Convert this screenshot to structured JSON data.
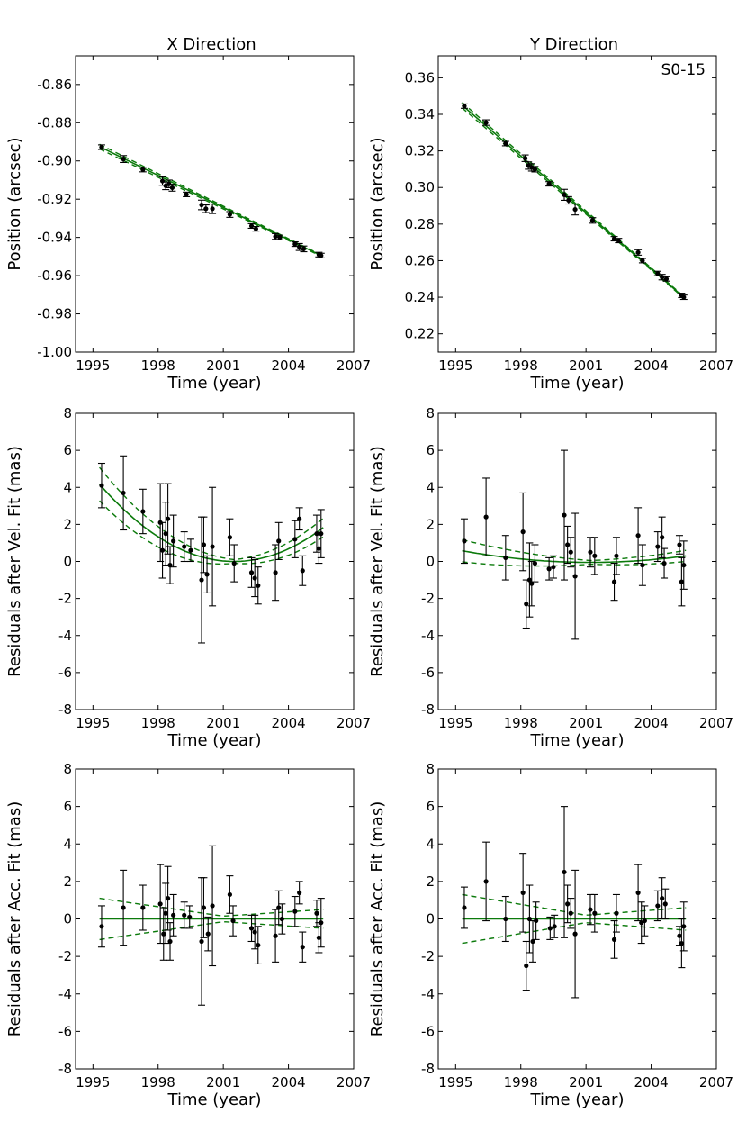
{
  "colors": {
    "fit": "#0b7a0b",
    "points": "#000000",
    "frame": "#000000"
  },
  "titles": {
    "x_direction": "X Direction",
    "y_direction": "Y Direction"
  },
  "annotation": "S0-15",
  "chart_data": [
    {
      "id": "x-position",
      "type": "scatter",
      "title": "X Direction",
      "xlabel": "Time (year)",
      "ylabel": "Position (arcsec)",
      "xlim": [
        1994.2,
        2007
      ],
      "ylim": [
        -1.0,
        -0.845
      ],
      "xticks": [
        1995,
        1998,
        2001,
        2004,
        2007
      ],
      "yticks": [
        -1.0,
        -0.98,
        -0.96,
        -0.94,
        -0.92,
        -0.9,
        -0.88,
        -0.86
      ],
      "ytick_decimals": 2,
      "fit_line": [
        [
          1995.3,
          -0.8925
        ],
        [
          2005.5,
          -0.9495
        ]
      ],
      "fit_band": 0.0012,
      "points": [
        {
          "x": 1995.4,
          "y": -0.8928,
          "err": 0.0012
        },
        {
          "x": 1996.4,
          "y": -0.899,
          "err": 0.0018
        },
        {
          "x": 1997.3,
          "y": -0.9045,
          "err": 0.0012
        },
        {
          "x": 1998.2,
          "y": -0.9105,
          "err": 0.0022
        },
        {
          "x": 1998.35,
          "y": -0.913,
          "err": 0.002
        },
        {
          "x": 1998.5,
          "y": -0.912,
          "err": 0.002
        },
        {
          "x": 1998.65,
          "y": -0.914,
          "err": 0.0018
        },
        {
          "x": 1999.3,
          "y": -0.9175,
          "err": 0.0012
        },
        {
          "x": 2000.0,
          "y": -0.923,
          "err": 0.0025
        },
        {
          "x": 2000.2,
          "y": -0.925,
          "err": 0.002
        },
        {
          "x": 2000.5,
          "y": -0.925,
          "err": 0.0025
        },
        {
          "x": 2001.3,
          "y": -0.928,
          "err": 0.0015
        },
        {
          "x": 2002.3,
          "y": -0.934,
          "err": 0.0012
        },
        {
          "x": 2002.5,
          "y": -0.9355,
          "err": 0.0012
        },
        {
          "x": 2003.4,
          "y": -0.9395,
          "err": 0.0015
        },
        {
          "x": 2003.6,
          "y": -0.94,
          "err": 0.0012
        },
        {
          "x": 2004.3,
          "y": -0.9435,
          "err": 0.0012
        },
        {
          "x": 2004.5,
          "y": -0.945,
          "err": 0.0018
        },
        {
          "x": 2004.7,
          "y": -0.946,
          "err": 0.0015
        },
        {
          "x": 2005.4,
          "y": -0.949,
          "err": 0.0012
        },
        {
          "x": 2005.5,
          "y": -0.9495,
          "err": 0.0012
        }
      ]
    },
    {
      "id": "y-position",
      "type": "scatter",
      "title": "Y Direction",
      "annotation": "S0-15",
      "xlabel": "Time (year)",
      "ylabel": "Position (arcsec)",
      "xlim": [
        1994.2,
        2007
      ],
      "ylim": [
        0.21,
        0.372
      ],
      "xticks": [
        1995,
        1998,
        2001,
        2004,
        2007
      ],
      "yticks": [
        0.22,
        0.24,
        0.26,
        0.28,
        0.3,
        0.32,
        0.34,
        0.36
      ],
      "ytick_decimals": 2,
      "fit_line": [
        [
          1995.3,
          0.345
        ],
        [
          2005.5,
          0.24
        ]
      ],
      "fit_band": 0.0015,
      "points": [
        {
          "x": 1995.4,
          "y": 0.3445,
          "err": 0.0012
        },
        {
          "x": 1996.4,
          "y": 0.3355,
          "err": 0.0015
        },
        {
          "x": 1997.3,
          "y": 0.324,
          "err": 0.0012
        },
        {
          "x": 1998.2,
          "y": 0.316,
          "err": 0.0018
        },
        {
          "x": 1998.35,
          "y": 0.312,
          "err": 0.002
        },
        {
          "x": 1998.5,
          "y": 0.311,
          "err": 0.002
        },
        {
          "x": 1998.65,
          "y": 0.31,
          "err": 0.0015
        },
        {
          "x": 1999.3,
          "y": 0.302,
          "err": 0.0012
        },
        {
          "x": 2000.0,
          "y": 0.296,
          "err": 0.003
        },
        {
          "x": 2000.2,
          "y": 0.293,
          "err": 0.002
        },
        {
          "x": 2000.5,
          "y": 0.288,
          "err": 0.003
        },
        {
          "x": 2001.3,
          "y": 0.282,
          "err": 0.0015
        },
        {
          "x": 2002.3,
          "y": 0.272,
          "err": 0.0012
        },
        {
          "x": 2002.5,
          "y": 0.271,
          "err": 0.0012
        },
        {
          "x": 2003.4,
          "y": 0.2645,
          "err": 0.0015
        },
        {
          "x": 2003.6,
          "y": 0.26,
          "err": 0.0012
        },
        {
          "x": 2004.3,
          "y": 0.253,
          "err": 0.0012
        },
        {
          "x": 2004.5,
          "y": 0.251,
          "err": 0.0015
        },
        {
          "x": 2004.7,
          "y": 0.25,
          "err": 0.0012
        },
        {
          "x": 2005.4,
          "y": 0.241,
          "err": 0.0012
        },
        {
          "x": 2005.5,
          "y": 0.24,
          "err": 0.0012
        }
      ]
    },
    {
      "id": "x-vel-residuals",
      "type": "scatter",
      "xlabel": "Time (year)",
      "ylabel": "Residuals after Vel. Fit (mas)",
      "xlim": [
        1994.2,
        2007
      ],
      "ylim": [
        -8,
        8
      ],
      "xticks": [
        1995,
        1998,
        2001,
        2004,
        2007
      ],
      "yticks": [
        -8,
        -6,
        -4,
        -2,
        0,
        2,
        4,
        6,
        8
      ],
      "ytick_decimals": 0,
      "fit_curve": {
        "a": 0.1087,
        "t0": 2001.5,
        "c": 0.0
      },
      "fit_band_curve": [
        0.9,
        0.1,
        0.5
      ],
      "points": [
        {
          "x": 1995.4,
          "y": 4.1,
          "err": 1.2
        },
        {
          "x": 1996.4,
          "y": 3.7,
          "err": 2.0
        },
        {
          "x": 1997.3,
          "y": 2.7,
          "err": 1.2
        },
        {
          "x": 1998.1,
          "y": 2.1,
          "err": 2.1
        },
        {
          "x": 1998.2,
          "y": 0.6,
          "err": 1.5
        },
        {
          "x": 1998.35,
          "y": 1.5,
          "err": 1.7
        },
        {
          "x": 1998.45,
          "y": 2.3,
          "err": 1.9
        },
        {
          "x": 1998.55,
          "y": -0.2,
          "err": 1.0
        },
        {
          "x": 1998.7,
          "y": 1.1,
          "err": 1.4
        },
        {
          "x": 1999.2,
          "y": 0.8,
          "err": 0.8
        },
        {
          "x": 1999.5,
          "y": 0.6,
          "err": 0.6
        },
        {
          "x": 2000.0,
          "y": -1.0,
          "err": 3.4
        },
        {
          "x": 2000.1,
          "y": 0.9,
          "err": 1.5
        },
        {
          "x": 2000.25,
          "y": -0.7,
          "err": 1.0
        },
        {
          "x": 2000.5,
          "y": 0.8,
          "err": 3.2
        },
        {
          "x": 2001.3,
          "y": 1.3,
          "err": 1.0
        },
        {
          "x": 2001.5,
          "y": -0.1,
          "err": 1.0
        },
        {
          "x": 2002.3,
          "y": -0.6,
          "err": 0.8
        },
        {
          "x": 2002.45,
          "y": -0.9,
          "err": 1.0
        },
        {
          "x": 2002.6,
          "y": -1.3,
          "err": 1.0
        },
        {
          "x": 2003.4,
          "y": -0.6,
          "err": 1.5
        },
        {
          "x": 2003.55,
          "y": 1.1,
          "err": 1.0
        },
        {
          "x": 2004.3,
          "y": 1.2,
          "err": 1.0
        },
        {
          "x": 2004.5,
          "y": 2.3,
          "err": 0.6
        },
        {
          "x": 2004.65,
          "y": -0.5,
          "err": 0.8
        },
        {
          "x": 2005.3,
          "y": 1.5,
          "err": 1.0
        },
        {
          "x": 2005.4,
          "y": 0.7,
          "err": 0.8
        },
        {
          "x": 2005.5,
          "y": 1.5,
          "err": 1.3
        }
      ]
    },
    {
      "id": "y-vel-residuals",
      "type": "scatter",
      "xlabel": "Time (year)",
      "ylabel": "Residuals after Vel. Fit (mas)",
      "xlim": [
        1994.2,
        2007
      ],
      "ylim": [
        -8,
        8
      ],
      "xticks": [
        1995,
        1998,
        2001,
        2004,
        2007
      ],
      "yticks": [
        -8,
        -6,
        -4,
        -2,
        0,
        2,
        4,
        6,
        8
      ],
      "ytick_decimals": 0,
      "fit_curve": {
        "a": 0.018,
        "t0": 2001.2,
        "c": -0.05
      },
      "fit_band_curve": [
        0.6,
        0.1,
        0.3
      ],
      "points": [
        {
          "x": 1995.4,
          "y": 1.1,
          "err": 1.2
        },
        {
          "x": 1996.4,
          "y": 2.4,
          "err": 2.1
        },
        {
          "x": 1997.3,
          "y": 0.2,
          "err": 1.2
        },
        {
          "x": 1998.1,
          "y": 1.6,
          "err": 2.1
        },
        {
          "x": 1998.25,
          "y": -2.3,
          "err": 1.3
        },
        {
          "x": 1998.4,
          "y": -1.0,
          "err": 2.0
        },
        {
          "x": 1998.5,
          "y": -1.2,
          "err": 1.2
        },
        {
          "x": 1998.65,
          "y": -0.1,
          "err": 1.0
        },
        {
          "x": 1999.3,
          "y": -0.4,
          "err": 0.6
        },
        {
          "x": 1999.5,
          "y": -0.3,
          "err": 0.6
        },
        {
          "x": 2000.0,
          "y": 2.5,
          "err": 3.5
        },
        {
          "x": 2000.15,
          "y": 0.9,
          "err": 1.0
        },
        {
          "x": 2000.3,
          "y": 0.5,
          "err": 0.8
        },
        {
          "x": 2000.5,
          "y": -0.8,
          "err": 3.4
        },
        {
          "x": 2001.2,
          "y": 0.5,
          "err": 0.8
        },
        {
          "x": 2001.4,
          "y": 0.3,
          "err": 1.0
        },
        {
          "x": 2002.3,
          "y": -1.1,
          "err": 1.0
        },
        {
          "x": 2002.4,
          "y": 0.3,
          "err": 1.0
        },
        {
          "x": 2003.4,
          "y": 1.4,
          "err": 1.5
        },
        {
          "x": 2003.6,
          "y": -0.2,
          "err": 1.1
        },
        {
          "x": 2004.3,
          "y": 0.8,
          "err": 0.8
        },
        {
          "x": 2004.5,
          "y": 1.3,
          "err": 1.1
        },
        {
          "x": 2004.6,
          "y": -0.1,
          "err": 0.8
        },
        {
          "x": 2005.3,
          "y": 0.9,
          "err": 0.5
        },
        {
          "x": 2005.4,
          "y": -1.1,
          "err": 1.3
        },
        {
          "x": 2005.5,
          "y": -0.2,
          "err": 1.3
        }
      ]
    },
    {
      "id": "x-acc-residuals",
      "type": "scatter",
      "xlabel": "Time (year)",
      "ylabel": "Residuals after Acc. Fit (mas)",
      "xlim": [
        1994.2,
        2007
      ],
      "ylim": [
        -8,
        8
      ],
      "xticks": [
        1995,
        1998,
        2001,
        2004,
        2007
      ],
      "yticks": [
        -8,
        -6,
        -4,
        -2,
        0,
        2,
        4,
        6,
        8
      ],
      "ytick_decimals": 0,
      "fit_curve": {
        "a": 0.0,
        "t0": 2001.0,
        "c": 0.0
      },
      "fit_band_curve": [
        1.1,
        0.15,
        0.5
      ],
      "points": [
        {
          "x": 1995.4,
          "y": -0.4,
          "err": 1.1
        },
        {
          "x": 1996.4,
          "y": 0.6,
          "err": 2.0
        },
        {
          "x": 1997.3,
          "y": 0.6,
          "err": 1.2
        },
        {
          "x": 1998.1,
          "y": 0.8,
          "err": 2.1
        },
        {
          "x": 1998.25,
          "y": -0.8,
          "err": 1.4
        },
        {
          "x": 1998.35,
          "y": 0.3,
          "err": 1.6
        },
        {
          "x": 1998.45,
          "y": 1.1,
          "err": 1.7
        },
        {
          "x": 1998.55,
          "y": -1.2,
          "err": 1.0
        },
        {
          "x": 1998.7,
          "y": 0.2,
          "err": 1.1
        },
        {
          "x": 1999.2,
          "y": 0.2,
          "err": 0.7
        },
        {
          "x": 1999.45,
          "y": 0.1,
          "err": 0.6
        },
        {
          "x": 2000.0,
          "y": -1.2,
          "err": 3.4
        },
        {
          "x": 2000.1,
          "y": 0.6,
          "err": 1.6
        },
        {
          "x": 2000.3,
          "y": -0.8,
          "err": 0.9
        },
        {
          "x": 2000.5,
          "y": 0.7,
          "err": 3.2
        },
        {
          "x": 2001.3,
          "y": 1.3,
          "err": 1.0
        },
        {
          "x": 2001.45,
          "y": -0.1,
          "err": 0.8
        },
        {
          "x": 2002.3,
          "y": -0.5,
          "err": 0.7
        },
        {
          "x": 2002.45,
          "y": -0.7,
          "err": 0.9
        },
        {
          "x": 2002.6,
          "y": -1.4,
          "err": 1.0
        },
        {
          "x": 2003.4,
          "y": -0.9,
          "err": 1.4
        },
        {
          "x": 2003.55,
          "y": 0.6,
          "err": 0.9
        },
        {
          "x": 2003.7,
          "y": 0.0,
          "err": 0.8
        },
        {
          "x": 2004.3,
          "y": 0.4,
          "err": 0.8
        },
        {
          "x": 2004.5,
          "y": 1.4,
          "err": 0.6
        },
        {
          "x": 2004.65,
          "y": -1.5,
          "err": 0.8
        },
        {
          "x": 2005.3,
          "y": 0.3,
          "err": 0.7
        },
        {
          "x": 2005.4,
          "y": -1.0,
          "err": 0.8
        },
        {
          "x": 2005.5,
          "y": -0.2,
          "err": 1.3
        }
      ]
    },
    {
      "id": "y-acc-residuals",
      "type": "scatter",
      "xlabel": "Time (year)",
      "ylabel": "Residuals after Acc. Fit (mas)",
      "xlim": [
        1994.2,
        2007
      ],
      "ylim": [
        -8,
        8
      ],
      "xticks": [
        1995,
        1998,
        2001,
        2004,
        2007
      ],
      "yticks": [
        -8,
        -6,
        -4,
        -2,
        0,
        2,
        4,
        6,
        8
      ],
      "ytick_decimals": 0,
      "fit_curve": {
        "a": 0.0,
        "t0": 2001.0,
        "c": 0.0
      },
      "fit_band_curve": [
        1.3,
        0.2,
        0.6
      ],
      "points": [
        {
          "x": 1995.4,
          "y": 0.6,
          "err": 1.1
        },
        {
          "x": 1996.4,
          "y": 2.0,
          "err": 2.1
        },
        {
          "x": 1997.3,
          "y": 0.0,
          "err": 1.2
        },
        {
          "x": 1998.1,
          "y": 1.4,
          "err": 2.1
        },
        {
          "x": 1998.25,
          "y": -2.5,
          "err": 1.3
        },
        {
          "x": 1998.4,
          "y": 0.0,
          "err": 1.8
        },
        {
          "x": 1998.55,
          "y": -1.2,
          "err": 1.1
        },
        {
          "x": 1998.7,
          "y": -0.1,
          "err": 1.0
        },
        {
          "x": 1999.35,
          "y": -0.5,
          "err": 0.6
        },
        {
          "x": 1999.55,
          "y": -0.4,
          "err": 0.6
        },
        {
          "x": 2000.0,
          "y": 2.5,
          "err": 3.5
        },
        {
          "x": 2000.15,
          "y": 0.8,
          "err": 1.0
        },
        {
          "x": 2000.3,
          "y": 0.3,
          "err": 0.8
        },
        {
          "x": 2000.5,
          "y": -0.8,
          "err": 3.4
        },
        {
          "x": 2001.2,
          "y": 0.5,
          "err": 0.8
        },
        {
          "x": 2001.4,
          "y": 0.3,
          "err": 1.0
        },
        {
          "x": 2002.3,
          "y": -1.1,
          "err": 1.0
        },
        {
          "x": 2002.4,
          "y": 0.3,
          "err": 1.0
        },
        {
          "x": 2003.4,
          "y": 1.4,
          "err": 1.5
        },
        {
          "x": 2003.55,
          "y": -0.2,
          "err": 1.1
        },
        {
          "x": 2003.7,
          "y": -0.1,
          "err": 0.8
        },
        {
          "x": 2004.3,
          "y": 0.7,
          "err": 0.8
        },
        {
          "x": 2004.5,
          "y": 1.1,
          "err": 1.1
        },
        {
          "x": 2004.65,
          "y": 0.8,
          "err": 0.8
        },
        {
          "x": 2005.3,
          "y": -0.9,
          "err": 0.5
        },
        {
          "x": 2005.4,
          "y": -1.3,
          "err": 1.3
        },
        {
          "x": 2005.5,
          "y": -0.4,
          "err": 1.3
        }
      ]
    }
  ]
}
